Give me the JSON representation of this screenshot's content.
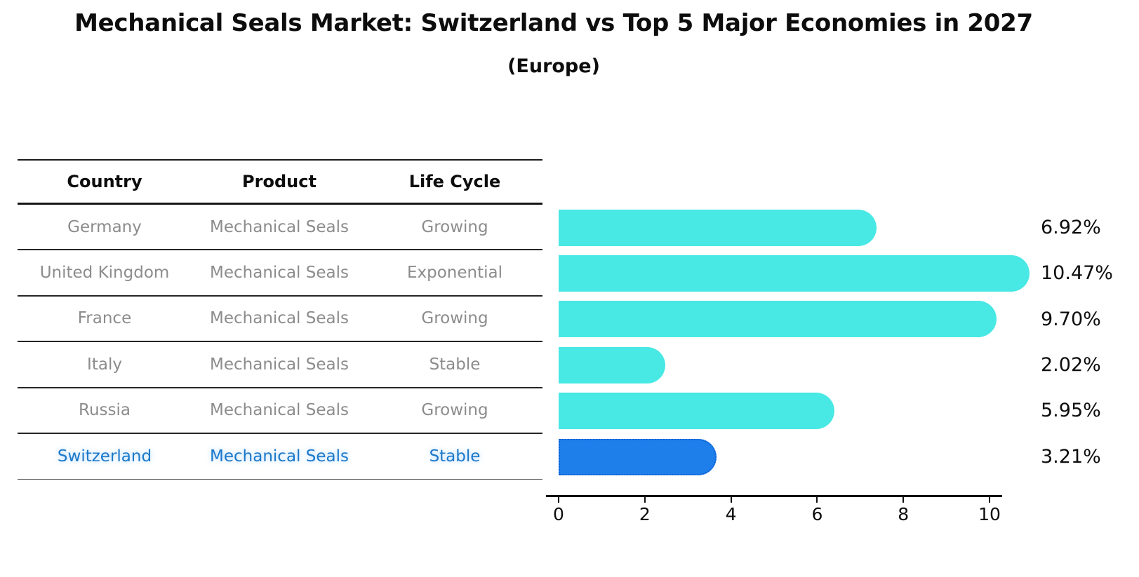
{
  "title": "Mechanical Seals Market: Switzerland vs Top 5 Major Economies in 2027",
  "subtitle": "(Europe)",
  "table": {
    "headers": [
      "Country",
      "Product",
      "Life Cycle"
    ],
    "rows": [
      {
        "country": "Germany",
        "product": "Mechanical Seals",
        "life_cycle": "Growing",
        "highlight": false
      },
      {
        "country": "United Kingdom",
        "product": "Mechanical Seals",
        "life_cycle": "Exponential",
        "highlight": false
      },
      {
        "country": "France",
        "product": "Mechanical Seals",
        "life_cycle": "Growing",
        "highlight": false
      },
      {
        "country": "Italy",
        "product": "Mechanical Seals",
        "life_cycle": "Stable",
        "highlight": false
      },
      {
        "country": "Russia",
        "product": "Mechanical Seals",
        "life_cycle": "Growing",
        "highlight": false
      },
      {
        "country": "Switzerland",
        "product": "Mechanical Seals",
        "life_cycle": "Stable",
        "highlight": true
      }
    ]
  },
  "chart_data": {
    "type": "bar",
    "orientation": "horizontal",
    "title": "Mechanical Seals Market: Switzerland vs Top 5 Major Economies in 2027",
    "subtitle": "(Europe)",
    "categories": [
      "Germany",
      "United Kingdom",
      "France",
      "Italy",
      "Russia",
      "Switzerland"
    ],
    "values": [
      6.92,
      10.47,
      9.7,
      2.02,
      5.95,
      3.21
    ],
    "value_labels": [
      "6.92%",
      "10.47%",
      "9.70%",
      "2.02%",
      "5.95%",
      "3.21%"
    ],
    "xlabel": "",
    "ylabel": "",
    "xlim": [
      0,
      11
    ],
    "x_ticks": [
      0,
      2,
      4,
      6,
      8,
      10
    ],
    "grid": false,
    "legend": false,
    "highlight_index": 5
  },
  "colors": {
    "bar": "#48E8E4",
    "highlight_bar": "#1E7FEB",
    "highlight_bar_border": "#0D5FD6",
    "row_text": "#8C8C8C",
    "highlight_text": "#1C78C8",
    "text": "#0D0D0D"
  }
}
